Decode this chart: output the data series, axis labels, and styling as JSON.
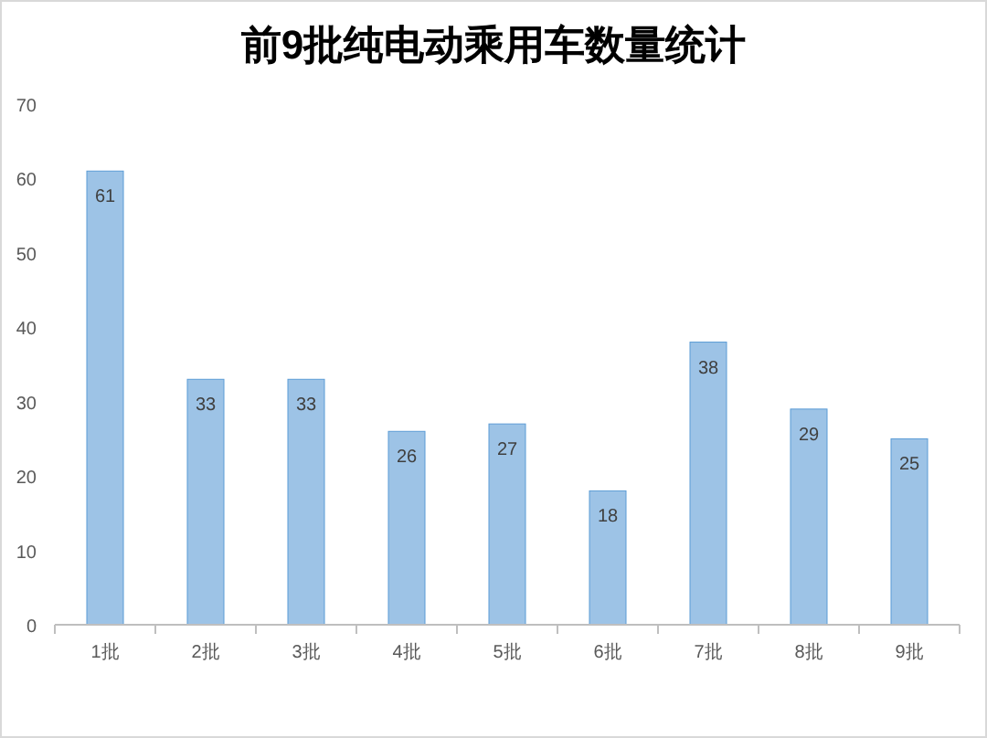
{
  "chart_data": {
    "type": "bar",
    "title": "前9批纯电动乘用车数量统计",
    "categories": [
      "1批",
      "2批",
      "3批",
      "4批",
      "5批",
      "6批",
      "7批",
      "8批",
      "9批"
    ],
    "values": [
      61,
      33,
      33,
      26,
      27,
      18,
      38,
      29,
      25
    ],
    "color": "#9dc3e6",
    "ylim": [
      0,
      70
    ],
    "yticks": [
      0,
      10,
      20,
      30,
      40,
      50,
      60,
      70
    ],
    "data_labels": true,
    "grid": false
  }
}
